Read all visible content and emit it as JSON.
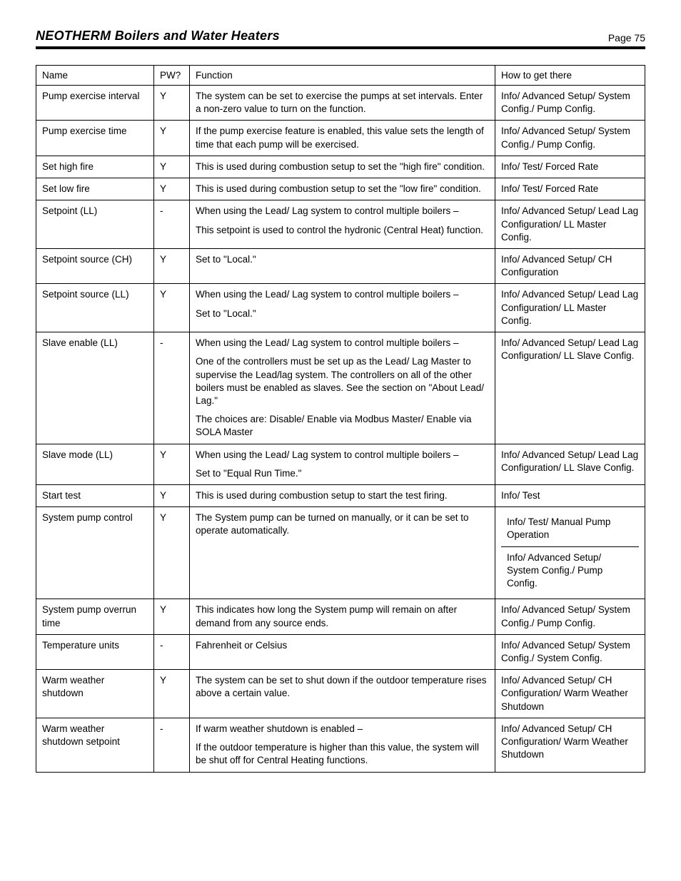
{
  "header": {
    "title": "NEOTHERM Boilers and Water Heaters",
    "page_label": "Page 75"
  },
  "table": {
    "columns": {
      "name": "Name",
      "pw": "PW?",
      "function": "Function",
      "how": "How to get there"
    },
    "rows": [
      {
        "name": "Pump exercise interval",
        "pw": "Y",
        "function": [
          "The system can be set to exercise the pumps at set intervals.  Enter a non-zero value to turn on the function."
        ],
        "how": [
          "Info/ Advanced Setup/ System Config./ Pump Config."
        ]
      },
      {
        "name": "Pump exercise time",
        "pw": "Y",
        "function": [
          "If the pump exercise feature is enabled, this value sets the length of time that each pump will be exercised."
        ],
        "how": [
          "Info/ Advanced Setup/ System Config./ Pump Config."
        ]
      },
      {
        "name": "Set high fire",
        "pw": "Y",
        "function": [
          "This is used during combustion setup to set the \"high fire\" condition."
        ],
        "how": [
          "Info/ Test/ Forced Rate"
        ]
      },
      {
        "name": "Set low fire",
        "pw": "Y",
        "function": [
          "This is used during combustion setup to set the \"low fire\" condition."
        ],
        "how": [
          "Info/ Test/ Forced Rate"
        ]
      },
      {
        "name": "Setpoint (LL)",
        "pw": "-",
        "function": [
          "When using the Lead/ Lag system to control multiple boilers –",
          "This setpoint is used to control the hydronic (Central Heat) function."
        ],
        "how": [
          "Info/ Advanced Setup/ Lead Lag Configuration/ LL Master Config."
        ]
      },
      {
        "name": "Setpoint source (CH)",
        "pw": "Y",
        "function": [
          "Set to \"Local.\""
        ],
        "how": [
          "Info/ Advanced Setup/ CH Configuration"
        ]
      },
      {
        "name": "Setpoint source (LL)",
        "pw": "Y",
        "function": [
          "When using the Lead/ Lag system to control multiple boilers –",
          "Set to \"Local.\""
        ],
        "how": [
          "Info/ Advanced Setup/ Lead Lag Configuration/ LL Master Config."
        ]
      },
      {
        "name": "Slave enable (LL)",
        "pw": "-",
        "function": [
          "When using the Lead/ Lag system to control multiple boilers –",
          "One of the controllers must be set up as the Lead/ Lag Master to supervise the Lead/lag system.  The controllers on all of the other boilers must be enabled as slaves.  See the section on \"About Lead/ Lag.\"",
          "The choices are: Disable/ Enable via Modbus Master/ Enable via SOLA Master"
        ],
        "how": [
          "Info/ Advanced Setup/ Lead Lag Configuration/ LL Slave Config."
        ]
      },
      {
        "name": "Slave mode (LL)",
        "pw": "Y",
        "function": [
          "When using the Lead/ Lag system to control multiple boilers –",
          "Set to \"Equal Run Time.\""
        ],
        "how": [
          "Info/ Advanced Setup/ Lead Lag Configuration/ LL Slave Config."
        ]
      },
      {
        "name": "Start test",
        "pw": "Y",
        "function": [
          "This is used during combustion setup to start the test firing."
        ],
        "how": [
          "Info/ Test"
        ]
      },
      {
        "name": "System pump control",
        "pw": "Y",
        "function": [
          "The System pump can be turned on manually, or it can be set to operate automatically."
        ],
        "how_split": [
          "Info/ Test/ Manual Pump Operation",
          "Info/ Advanced Setup/ System Config./ Pump Config."
        ]
      },
      {
        "name": "System pump overrun time",
        "pw": "Y",
        "function": [
          "This indicates how long the System pump will remain on after demand from any source ends."
        ],
        "how": [
          "Info/ Advanced Setup/ System Config./ Pump Config."
        ]
      },
      {
        "name": "Temperature units",
        "pw": "-",
        "function": [
          "Fahrenheit or Celsius"
        ],
        "how": [
          "Info/ Advanced Setup/ System Config./ System Config."
        ]
      },
      {
        "name": "Warm weather shutdown",
        "pw": "Y",
        "function": [
          "The system can be set to shut down if the outdoor temperature rises above a certain value."
        ],
        "how": [
          "Info/ Advanced Setup/ CH Configuration/ Warm Weather Shutdown"
        ]
      },
      {
        "name": "Warm weather shutdown setpoint",
        "pw": "-",
        "function": [
          "If warm weather shutdown is enabled –",
          "If the outdoor temperature is higher than this value, the system will be shut off for Central Heating functions."
        ],
        "how": [
          "Info/ Advanced Setup/ CH Configuration/ Warm Weather Shutdown"
        ]
      }
    ]
  }
}
